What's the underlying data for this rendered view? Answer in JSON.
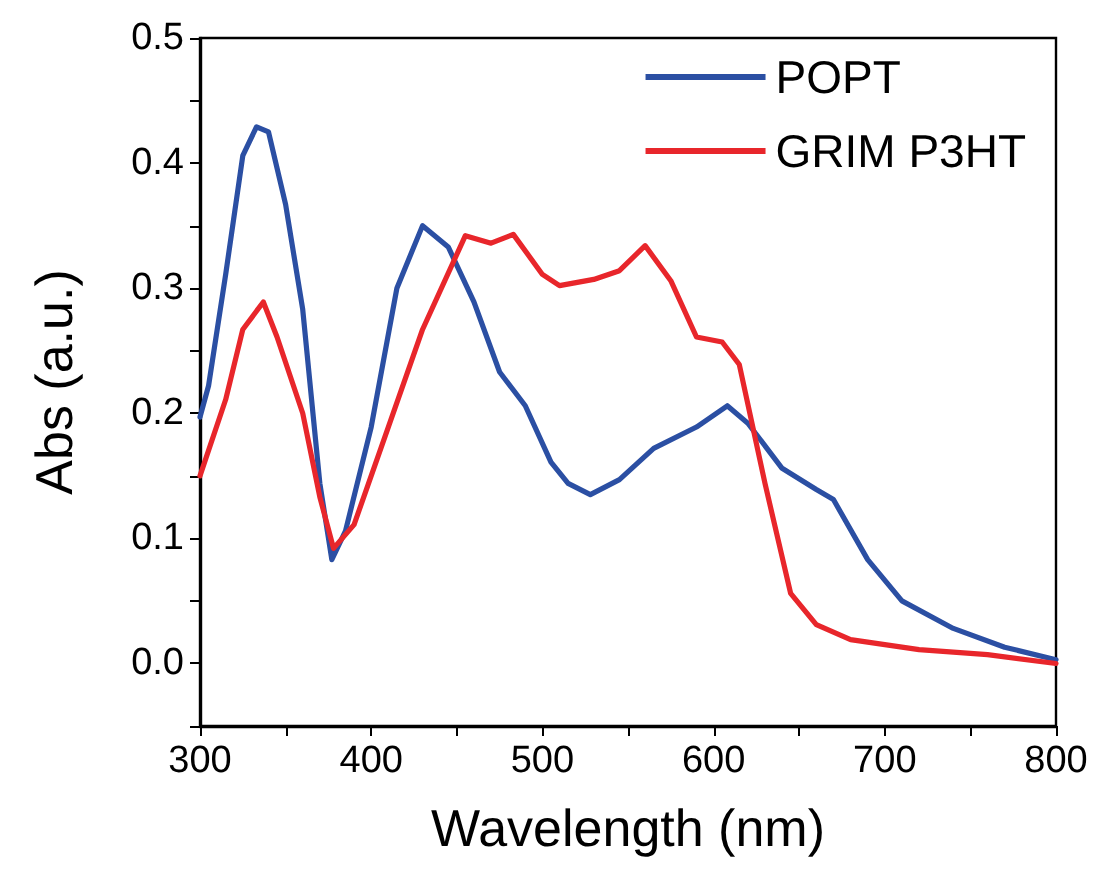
{
  "chart_data": {
    "type": "line",
    "xlabel": "Wavelength (nm)",
    "ylabel": "Abs (a.u.)",
    "xlim": [
      300,
      800
    ],
    "ylim": [
      -0.05,
      0.5
    ],
    "xticks": [
      300,
      {
        "value": 350,
        "label": null
      },
      400,
      {
        "value": 450,
        "label": null
      },
      500,
      {
        "value": 550,
        "label": null
      },
      600,
      {
        "value": 650,
        "label": null
      },
      700,
      {
        "value": 750,
        "label": null
      },
      800
    ],
    "yticks": [
      {
        "value": -0.05,
        "label": null
      },
      {
        "value": 0,
        "label": "0.0"
      },
      {
        "value": 0.05,
        "label": null
      },
      {
        "value": 0.1,
        "label": "0.1"
      },
      {
        "value": 0.15,
        "label": null
      },
      {
        "value": 0.2,
        "label": "0.2"
      },
      {
        "value": 0.25,
        "label": null
      },
      {
        "value": 0.3,
        "label": "0.3"
      },
      {
        "value": 0.35,
        "label": null
      },
      {
        "value": 0.4,
        "label": "0.4"
      },
      {
        "value": 0.45,
        "label": null
      },
      {
        "value": 0.5,
        "label": "0.5"
      }
    ],
    "grid": false,
    "legend": "top right",
    "marker": "none",
    "line_style": "solid",
    "series": [
      {
        "name": "POPT",
        "color": "#2b4fa3",
        "x": [
          300,
          305,
          315,
          325,
          333,
          340,
          350,
          360,
          370,
          377,
          385,
          400,
          415,
          430,
          445,
          460,
          475,
          490,
          505,
          515,
          528,
          545,
          565,
          590,
          608,
          620,
          640,
          660,
          670,
          690,
          710,
          740,
          770,
          800
        ],
        "values": [
          0.197,
          0.222,
          0.311,
          0.406,
          0.429,
          0.425,
          0.367,
          0.283,
          0.144,
          0.083,
          0.106,
          0.189,
          0.3,
          0.35,
          0.333,
          0.289,
          0.233,
          0.206,
          0.161,
          0.144,
          0.135,
          0.147,
          0.172,
          0.189,
          0.206,
          0.192,
          0.156,
          0.139,
          0.131,
          0.083,
          0.05,
          0.028,
          0.013,
          0.003
        ]
      },
      {
        "name": "GRIM P3HT",
        "color": "#e8262b",
        "x": [
          300,
          315,
          325,
          337,
          345,
          360,
          370,
          378,
          390,
          410,
          430,
          455,
          470,
          483,
          500,
          510,
          530,
          545,
          560,
          575,
          590,
          605,
          615,
          630,
          645,
          660,
          680,
          720,
          760,
          800
        ],
        "values": [
          0.15,
          0.211,
          0.267,
          0.289,
          0.261,
          0.2,
          0.133,
          0.092,
          0.111,
          0.189,
          0.267,
          0.342,
          0.336,
          0.343,
          0.311,
          0.302,
          0.307,
          0.314,
          0.334,
          0.306,
          0.261,
          0.257,
          0.239,
          0.144,
          0.056,
          0.031,
          0.019,
          0.011,
          0.007,
          0
        ]
      }
    ]
  }
}
